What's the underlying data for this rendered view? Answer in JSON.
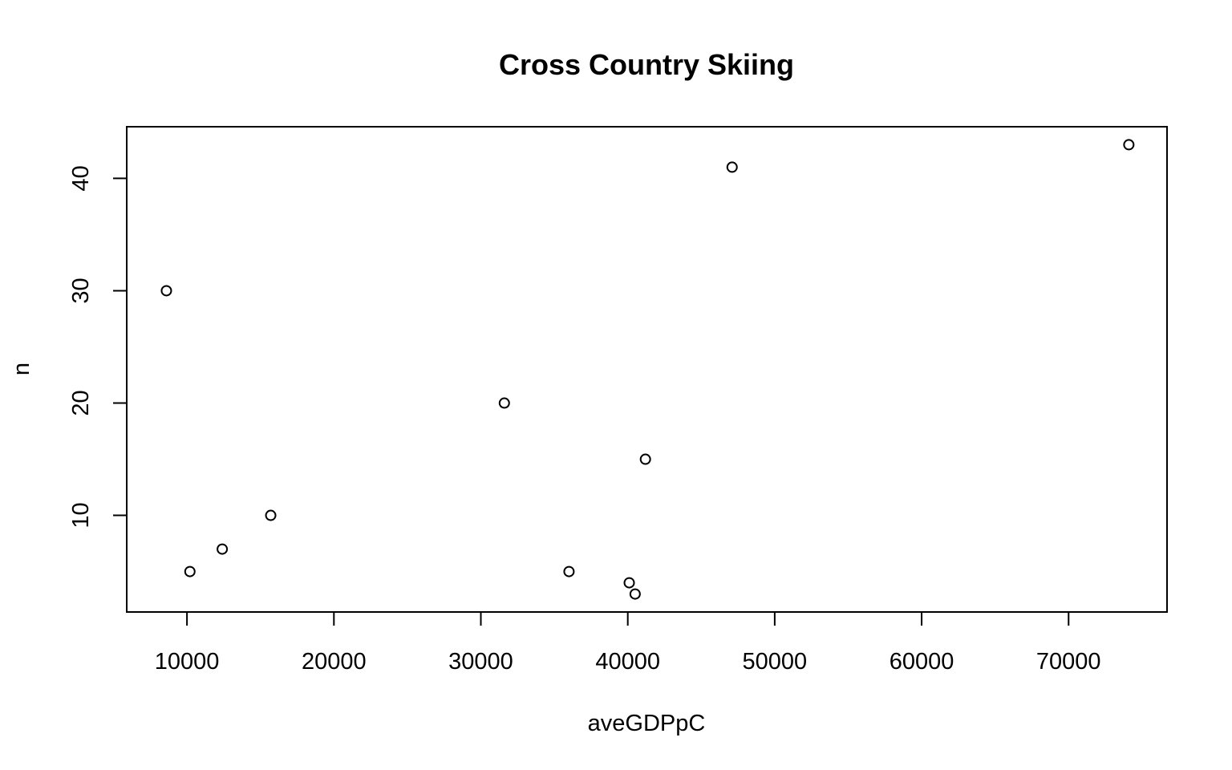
{
  "chart_data": {
    "type": "scatter",
    "title": "Cross Country Skiing",
    "xlabel": "aveGDPpC",
    "ylabel": "n",
    "xlim": [
      5900,
      76700
    ],
    "ylim": [
      1.4,
      44.6
    ],
    "x_ticks": [
      10000,
      20000,
      30000,
      40000,
      50000,
      60000,
      70000
    ],
    "x_tick_labels": [
      "10000",
      "20000",
      "30000",
      "40000",
      "50000",
      "60000",
      "70000"
    ],
    "y_ticks": [
      10,
      20,
      30,
      40
    ],
    "y_tick_labels": [
      "10",
      "20",
      "30",
      "40"
    ],
    "grid": false,
    "marker": "open-circle",
    "points": [
      {
        "x": 8600,
        "y": 30
      },
      {
        "x": 10200,
        "y": 5
      },
      {
        "x": 12400,
        "y": 7
      },
      {
        "x": 15700,
        "y": 10
      },
      {
        "x": 31600,
        "y": 20
      },
      {
        "x": 36000,
        "y": 5
      },
      {
        "x": 40100,
        "y": 4
      },
      {
        "x": 40500,
        "y": 3
      },
      {
        "x": 41200,
        "y": 15
      },
      {
        "x": 47100,
        "y": 41
      },
      {
        "x": 74100,
        "y": 43
      }
    ]
  }
}
